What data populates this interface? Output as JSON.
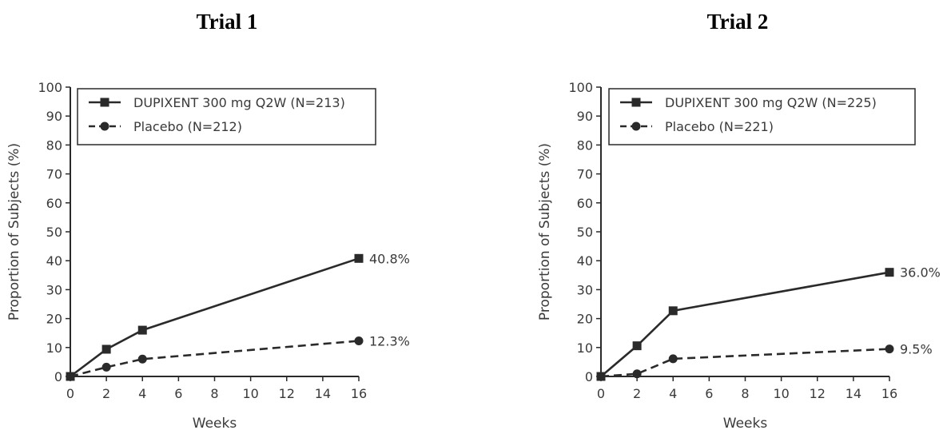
{
  "chart_data": [
    {
      "type": "line",
      "title": "Trial 1",
      "xlabel": "Weeks",
      "ylabel": "Proportion of Subjects (%)",
      "xlim": [
        0,
        16
      ],
      "ylim": [
        0,
        100
      ],
      "xticks": [
        0,
        2,
        4,
        6,
        8,
        10,
        12,
        14,
        16
      ],
      "yticks": [
        0,
        10,
        20,
        30,
        40,
        50,
        60,
        70,
        80,
        90,
        100
      ],
      "grid": false,
      "legend_position": "top-left",
      "series": [
        {
          "name": "DUPIXENT 300 mg Q2W (N=213)",
          "style": "solid",
          "marker": "square",
          "x": [
            0,
            2,
            4,
            16
          ],
          "y": [
            0,
            9.4,
            16,
            40.8
          ],
          "end_label": "40.8%"
        },
        {
          "name": "Placebo (N=212)",
          "style": "dashed",
          "marker": "circle",
          "x": [
            0,
            2,
            4,
            16
          ],
          "y": [
            0,
            3.2,
            6,
            12.3
          ],
          "end_label": "12.3%"
        }
      ]
    },
    {
      "type": "line",
      "title": "Trial 2",
      "xlabel": "Weeks",
      "ylabel": "Proportion of Subjects (%)",
      "xlim": [
        0,
        16
      ],
      "ylim": [
        0,
        100
      ],
      "xticks": [
        0,
        2,
        4,
        6,
        8,
        10,
        12,
        14,
        16
      ],
      "yticks": [
        0,
        10,
        20,
        30,
        40,
        50,
        60,
        70,
        80,
        90,
        100
      ],
      "grid": false,
      "legend_position": "top-left",
      "series": [
        {
          "name": "DUPIXENT 300 mg Q2W (N=225)",
          "style": "solid",
          "marker": "square",
          "x": [
            0,
            2,
            4,
            16
          ],
          "y": [
            0,
            10.6,
            22.7,
            36.0
          ],
          "end_label": "36.0%"
        },
        {
          "name": "Placebo (N=221)",
          "style": "dashed",
          "marker": "circle",
          "x": [
            0,
            2,
            4,
            16
          ],
          "y": [
            0,
            0.9,
            6.1,
            9.5
          ],
          "end_label": "9.5%"
        }
      ]
    }
  ],
  "colors": {
    "line": "#2a2a2a",
    "text": "#3a3a3a",
    "title": "#000000"
  }
}
